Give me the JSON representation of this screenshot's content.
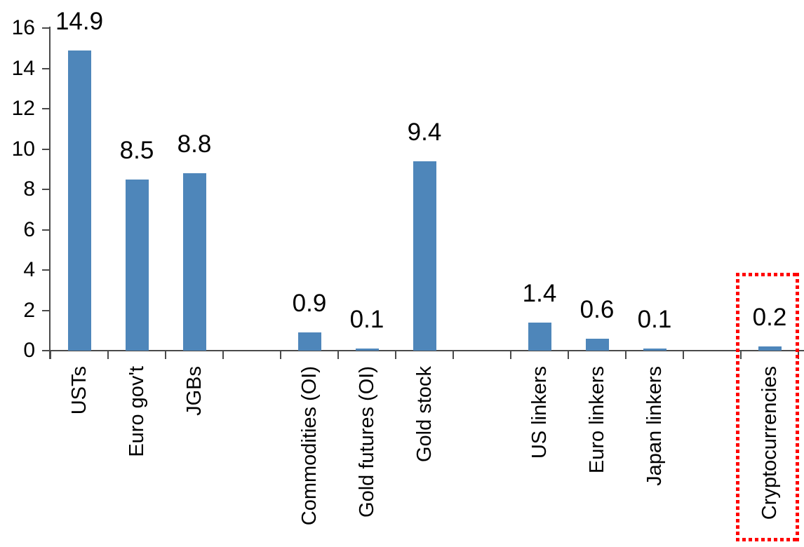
{
  "chart_data": {
    "type": "bar",
    "title": "",
    "xlabel": "",
    "ylabel": "",
    "categories": [
      "USTs",
      "Euro gov't",
      "JGBs",
      "",
      "Commodities (OI)",
      "Gold futures (OI)",
      "Gold stock",
      "",
      "US linkers",
      "Euro linkers",
      "Japan linkers",
      "",
      "Cryptocurrencies"
    ],
    "values": [
      14.9,
      8.5,
      8.8,
      null,
      0.9,
      0.1,
      9.4,
      null,
      1.4,
      0.6,
      0.1,
      null,
      0.2
    ],
    "data_labels": [
      "14.9",
      "8.5",
      "8.8",
      "",
      "0.9",
      "0.1",
      "9.4",
      "",
      "1.4",
      "0.6",
      "0.1",
      "",
      "0.2"
    ],
    "ylim": [
      0,
      16
    ],
    "yticks": [
      0,
      2,
      4,
      6,
      8,
      10,
      12,
      14,
      16
    ],
    "grid": "off",
    "legend": "none",
    "colors": {
      "bar": "#4E86BA",
      "axis": "#4A4A4A",
      "text": "#000000",
      "highlight": "#FF0000"
    },
    "highlight": {
      "target_category": "Cryptocurrencies",
      "style": "red dotted rectangle around last bar and its label"
    }
  }
}
